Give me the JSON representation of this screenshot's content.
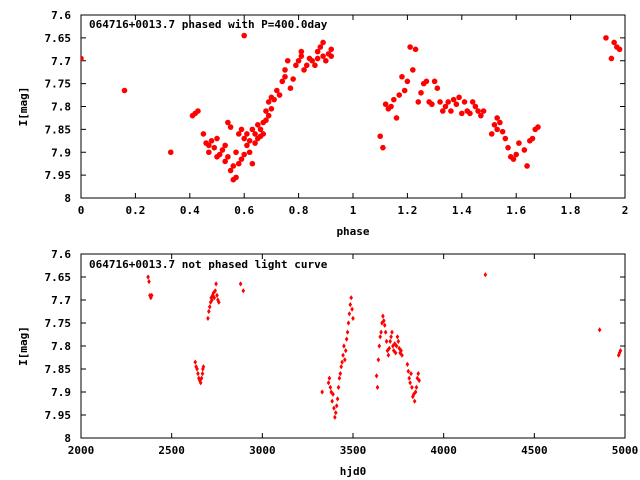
{
  "chart_data": [
    {
      "type": "scatter",
      "title": "064716+0013.7 phased with P=400.0day",
      "xlabel": "phase",
      "ylabel": "I[mag]",
      "xlim": [
        0,
        2
      ],
      "ylim": [
        8,
        7.6
      ],
      "y_inverted": true,
      "xticks": [
        "0",
        "0.2",
        "0.4",
        "0.6",
        "0.8",
        "1",
        "1.2",
        "1.4",
        "1.6",
        "1.8",
        "2"
      ],
      "yticks": [
        "7.6",
        "7.65",
        "7.7",
        "7.75",
        "7.8",
        "7.85",
        "7.9",
        "7.95",
        "8"
      ],
      "grid": false,
      "marker": "filled-circle",
      "color": "#ff0000",
      "points": [
        [
          0.0,
          7.695
        ],
        [
          0.16,
          7.765
        ],
        [
          0.33,
          7.9
        ],
        [
          0.41,
          7.82
        ],
        [
          0.42,
          7.815
        ],
        [
          0.43,
          7.81
        ],
        [
          0.45,
          7.86
        ],
        [
          0.46,
          7.88
        ],
        [
          0.47,
          7.885
        ],
        [
          0.47,
          7.9
        ],
        [
          0.48,
          7.875
        ],
        [
          0.49,
          7.89
        ],
        [
          0.5,
          7.87
        ],
        [
          0.5,
          7.91
        ],
        [
          0.51,
          7.905
        ],
        [
          0.52,
          7.895
        ],
        [
          0.53,
          7.885
        ],
        [
          0.53,
          7.92
        ],
        [
          0.54,
          7.91
        ],
        [
          0.54,
          7.835
        ],
        [
          0.55,
          7.845
        ],
        [
          0.55,
          7.94
        ],
        [
          0.56,
          7.93
        ],
        [
          0.56,
          7.96
        ],
        [
          0.57,
          7.955
        ],
        [
          0.57,
          7.9
        ],
        [
          0.58,
          7.86
        ],
        [
          0.58,
          7.925
        ],
        [
          0.59,
          7.915
        ],
        [
          0.59,
          7.85
        ],
        [
          0.6,
          7.87
        ],
        [
          0.6,
          7.905
        ],
        [
          0.6,
          7.645
        ],
        [
          0.61,
          7.885
        ],
        [
          0.61,
          7.86
        ],
        [
          0.62,
          7.875
        ],
        [
          0.62,
          7.9
        ],
        [
          0.63,
          7.85
        ],
        [
          0.63,
          7.925
        ],
        [
          0.64,
          7.86
        ],
        [
          0.64,
          7.88
        ],
        [
          0.65,
          7.87
        ],
        [
          0.65,
          7.84
        ],
        [
          0.66,
          7.865
        ],
        [
          0.66,
          7.85
        ],
        [
          0.67,
          7.835
        ],
        [
          0.67,
          7.86
        ],
        [
          0.68,
          7.81
        ],
        [
          0.68,
          7.83
        ],
        [
          0.69,
          7.82
        ],
        [
          0.69,
          7.79
        ],
        [
          0.7,
          7.805
        ],
        [
          0.7,
          7.78
        ],
        [
          0.71,
          7.785
        ],
        [
          0.72,
          7.765
        ],
        [
          0.73,
          7.775
        ],
        [
          0.74,
          7.745
        ],
        [
          0.75,
          7.72
        ],
        [
          0.75,
          7.735
        ],
        [
          0.76,
          7.7
        ],
        [
          0.77,
          7.76
        ],
        [
          0.78,
          7.74
        ],
        [
          0.79,
          7.71
        ],
        [
          0.8,
          7.7
        ],
        [
          0.81,
          7.69
        ],
        [
          0.81,
          7.68
        ],
        [
          0.82,
          7.72
        ],
        [
          0.83,
          7.71
        ],
        [
          0.84,
          7.695
        ],
        [
          0.85,
          7.7
        ],
        [
          0.86,
          7.71
        ],
        [
          0.87,
          7.68
        ],
        [
          0.87,
          7.695
        ],
        [
          0.88,
          7.67
        ],
        [
          0.89,
          7.69
        ],
        [
          0.89,
          7.66
        ],
        [
          0.9,
          7.7
        ],
        [
          0.91,
          7.685
        ],
        [
          0.92,
          7.69
        ],
        [
          0.92,
          7.675
        ],
        [
          1.1,
          7.865
        ],
        [
          1.11,
          7.89
        ],
        [
          1.12,
          7.795
        ],
        [
          1.13,
          7.805
        ],
        [
          1.14,
          7.8
        ],
        [
          1.15,
          7.785
        ],
        [
          1.16,
          7.825
        ],
        [
          1.17,
          7.775
        ],
        [
          1.18,
          7.735
        ],
        [
          1.19,
          7.765
        ],
        [
          1.2,
          7.745
        ],
        [
          1.21,
          7.67
        ],
        [
          1.22,
          7.72
        ],
        [
          1.23,
          7.675
        ],
        [
          1.24,
          7.79
        ],
        [
          1.25,
          7.77
        ],
        [
          1.26,
          7.75
        ],
        [
          1.27,
          7.745
        ],
        [
          1.28,
          7.79
        ],
        [
          1.29,
          7.795
        ],
        [
          1.3,
          7.745
        ],
        [
          1.31,
          7.76
        ],
        [
          1.32,
          7.79
        ],
        [
          1.33,
          7.81
        ],
        [
          1.34,
          7.8
        ],
        [
          1.35,
          7.79
        ],
        [
          1.36,
          7.81
        ],
        [
          1.37,
          7.785
        ],
        [
          1.38,
          7.795
        ],
        [
          1.39,
          7.78
        ],
        [
          1.4,
          7.815
        ],
        [
          1.41,
          7.79
        ],
        [
          1.42,
          7.81
        ],
        [
          1.43,
          7.815
        ],
        [
          1.44,
          7.79
        ],
        [
          1.45,
          7.8
        ],
        [
          1.46,
          7.81
        ],
        [
          1.47,
          7.82
        ],
        [
          1.48,
          7.81
        ],
        [
          1.51,
          7.86
        ],
        [
          1.52,
          7.84
        ],
        [
          1.53,
          7.825
        ],
        [
          1.53,
          7.85
        ],
        [
          1.54,
          7.835
        ],
        [
          1.55,
          7.855
        ],
        [
          1.56,
          7.87
        ],
        [
          1.57,
          7.89
        ],
        [
          1.58,
          7.91
        ],
        [
          1.59,
          7.915
        ],
        [
          1.6,
          7.905
        ],
        [
          1.61,
          7.88
        ],
        [
          1.63,
          7.895
        ],
        [
          1.64,
          7.93
        ],
        [
          1.65,
          7.875
        ],
        [
          1.66,
          7.87
        ],
        [
          1.67,
          7.85
        ],
        [
          1.68,
          7.845
        ],
        [
          1.93,
          7.65
        ],
        [
          1.95,
          7.695
        ],
        [
          1.96,
          7.66
        ],
        [
          1.97,
          7.67
        ],
        [
          1.98,
          7.675
        ]
      ]
    },
    {
      "type": "scatter",
      "title": "064716+0013.7 not phased light curve",
      "xlabel": "hjd0",
      "ylabel": "I[mag]",
      "xlim": [
        2000,
        5000
      ],
      "ylim": [
        8,
        7.6
      ],
      "y_inverted": true,
      "xticks": [
        "2000",
        "2500",
        "3000",
        "3500",
        "4000",
        "4500",
        "5000"
      ],
      "yticks": [
        "7.6",
        "7.65",
        "7.7",
        "7.75",
        "7.8",
        "7.85",
        "7.9",
        "7.95",
        "8"
      ],
      "grid": false,
      "marker": "small-diamond",
      "color": "#ff0000",
      "points": [
        [
          2370,
          7.65
        ],
        [
          2375,
          7.66
        ],
        [
          2380,
          7.69
        ],
        [
          2385,
          7.695
        ],
        [
          2390,
          7.69
        ],
        [
          2630,
          7.835
        ],
        [
          2635,
          7.845
        ],
        [
          2640,
          7.85
        ],
        [
          2645,
          7.86
        ],
        [
          2650,
          7.87
        ],
        [
          2655,
          7.875
        ],
        [
          2660,
          7.88
        ],
        [
          2665,
          7.87
        ],
        [
          2670,
          7.86
        ],
        [
          2672,
          7.85
        ],
        [
          2675,
          7.845
        ],
        [
          2700,
          7.74
        ],
        [
          2705,
          7.725
        ],
        [
          2710,
          7.715
        ],
        [
          2715,
          7.705
        ],
        [
          2718,
          7.695
        ],
        [
          2722,
          7.7
        ],
        [
          2726,
          7.69
        ],
        [
          2730,
          7.685
        ],
        [
          2735,
          7.695
        ],
        [
          2740,
          7.68
        ],
        [
          2745,
          7.665
        ],
        [
          2750,
          7.69
        ],
        [
          2755,
          7.7
        ],
        [
          2760,
          7.705
        ],
        [
          2880,
          7.665
        ],
        [
          2895,
          7.68
        ],
        [
          3330,
          7.9
        ],
        [
          3365,
          7.88
        ],
        [
          3370,
          7.87
        ],
        [
          3375,
          7.89
        ],
        [
          3380,
          7.9
        ],
        [
          3385,
          7.92
        ],
        [
          3390,
          7.905
        ],
        [
          3395,
          7.935
        ],
        [
          3400,
          7.955
        ],
        [
          3405,
          7.945
        ],
        [
          3410,
          7.93
        ],
        [
          3415,
          7.915
        ],
        [
          3420,
          7.89
        ],
        [
          3425,
          7.87
        ],
        [
          3430,
          7.86
        ],
        [
          3435,
          7.845
        ],
        [
          3440,
          7.835
        ],
        [
          3445,
          7.82
        ],
        [
          3450,
          7.8
        ],
        [
          3455,
          7.83
        ],
        [
          3460,
          7.81
        ],
        [
          3465,
          7.785
        ],
        [
          3470,
          7.77
        ],
        [
          3475,
          7.75
        ],
        [
          3480,
          7.73
        ],
        [
          3485,
          7.71
        ],
        [
          3490,
          7.695
        ],
        [
          3495,
          7.72
        ],
        [
          3500,
          7.74
        ],
        [
          3630,
          7.865
        ],
        [
          3635,
          7.89
        ],
        [
          3640,
          7.83
        ],
        [
          3645,
          7.8
        ],
        [
          3650,
          7.78
        ],
        [
          3655,
          7.77
        ],
        [
          3660,
          7.75
        ],
        [
          3665,
          7.735
        ],
        [
          3670,
          7.745
        ],
        [
          3675,
          7.755
        ],
        [
          3680,
          7.77
        ],
        [
          3685,
          7.79
        ],
        [
          3690,
          7.81
        ],
        [
          3695,
          7.82
        ],
        [
          3700,
          7.805
        ],
        [
          3705,
          7.79
        ],
        [
          3710,
          7.78
        ],
        [
          3715,
          7.77
        ],
        [
          3720,
          7.8
        ],
        [
          3725,
          7.81
        ],
        [
          3730,
          7.795
        ],
        [
          3735,
          7.815
        ],
        [
          3740,
          7.8
        ],
        [
          3745,
          7.78
        ],
        [
          3750,
          7.79
        ],
        [
          3755,
          7.805
        ],
        [
          3760,
          7.815
        ],
        [
          3765,
          7.81
        ],
        [
          3770,
          7.82
        ],
        [
          3800,
          7.84
        ],
        [
          3805,
          7.855
        ],
        [
          3810,
          7.87
        ],
        [
          3815,
          7.88
        ],
        [
          3820,
          7.86
        ],
        [
          3825,
          7.89
        ],
        [
          3830,
          7.91
        ],
        [
          3835,
          7.905
        ],
        [
          3840,
          7.92
        ],
        [
          3845,
          7.9
        ],
        [
          3850,
          7.89
        ],
        [
          3855,
          7.87
        ],
        [
          3860,
          7.86
        ],
        [
          3865,
          7.875
        ],
        [
          4230,
          7.645
        ],
        [
          4860,
          7.765
        ],
        [
          4965,
          7.82
        ],
        [
          4970,
          7.815
        ],
        [
          4975,
          7.81
        ]
      ]
    }
  ]
}
